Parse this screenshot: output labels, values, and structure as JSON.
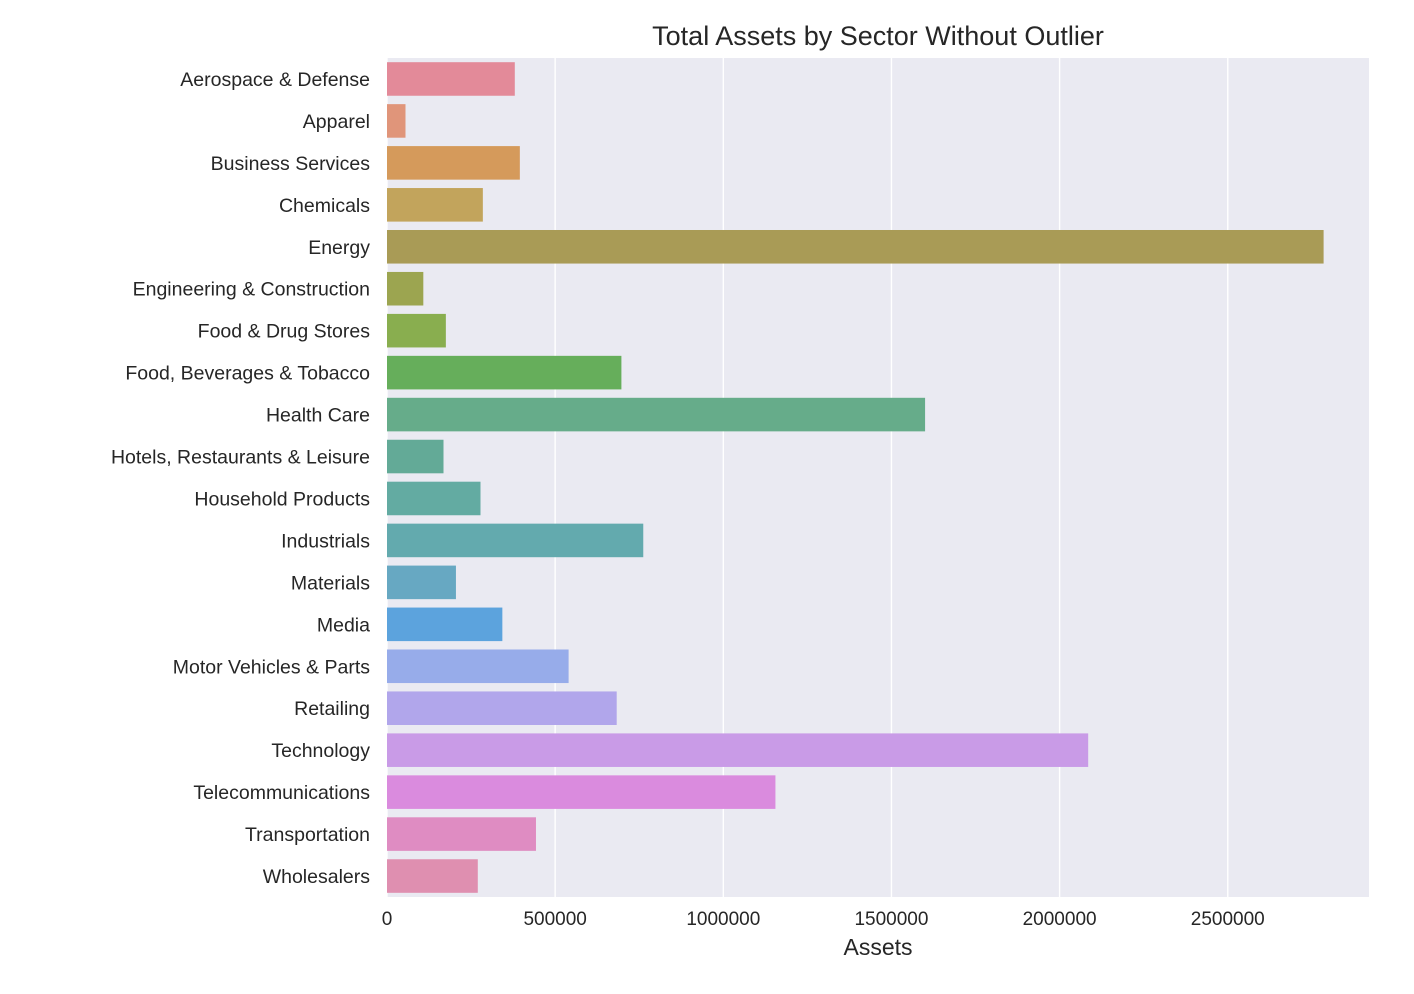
{
  "chart_data": {
    "type": "bar",
    "orientation": "horizontal",
    "title": "Total Assets by Sector Without Outlier",
    "xlabel": "Assets",
    "ylabel": "",
    "xlim": [
      0,
      2920000
    ],
    "xticks": [
      0,
      500000,
      1000000,
      1500000,
      2000000,
      2500000
    ],
    "grid": true,
    "background": "#eaeaf2",
    "categories": [
      "Aerospace & Defense",
      "Apparel",
      "Business Services",
      "Chemicals",
      "Energy",
      "Engineering & Construction",
      "Food & Drug Stores",
      "Food, Beverages & Tobacco",
      "Health Care",
      "Hotels, Restaurants & Leisure",
      "Household Products",
      "Industrials",
      "Materials",
      "Media",
      "Motor Vehicles & Parts",
      "Retailing",
      "Technology",
      "Telecommunications",
      "Transportation",
      "Wholesalers"
    ],
    "values": [
      380000,
      55000,
      395000,
      285000,
      2785000,
      108000,
      175000,
      697000,
      1600000,
      168000,
      278000,
      762000,
      205000,
      343000,
      540000,
      683000,
      2085000,
      1155000,
      443000,
      270000
    ],
    "colors": [
      "#e38a99",
      "#e0957a",
      "#d59a5b",
      "#c2a45c",
      "#a99b56",
      "#9ca550",
      "#89ae4f",
      "#66ae5b",
      "#66ac8a",
      "#63aa97",
      "#63aba2",
      "#63aaae",
      "#67a8c2",
      "#5ca3dd",
      "#97acea",
      "#b1a6eb",
      "#c99be7",
      "#da8bde",
      "#df8cc2",
      "#df8fb0"
    ]
  }
}
